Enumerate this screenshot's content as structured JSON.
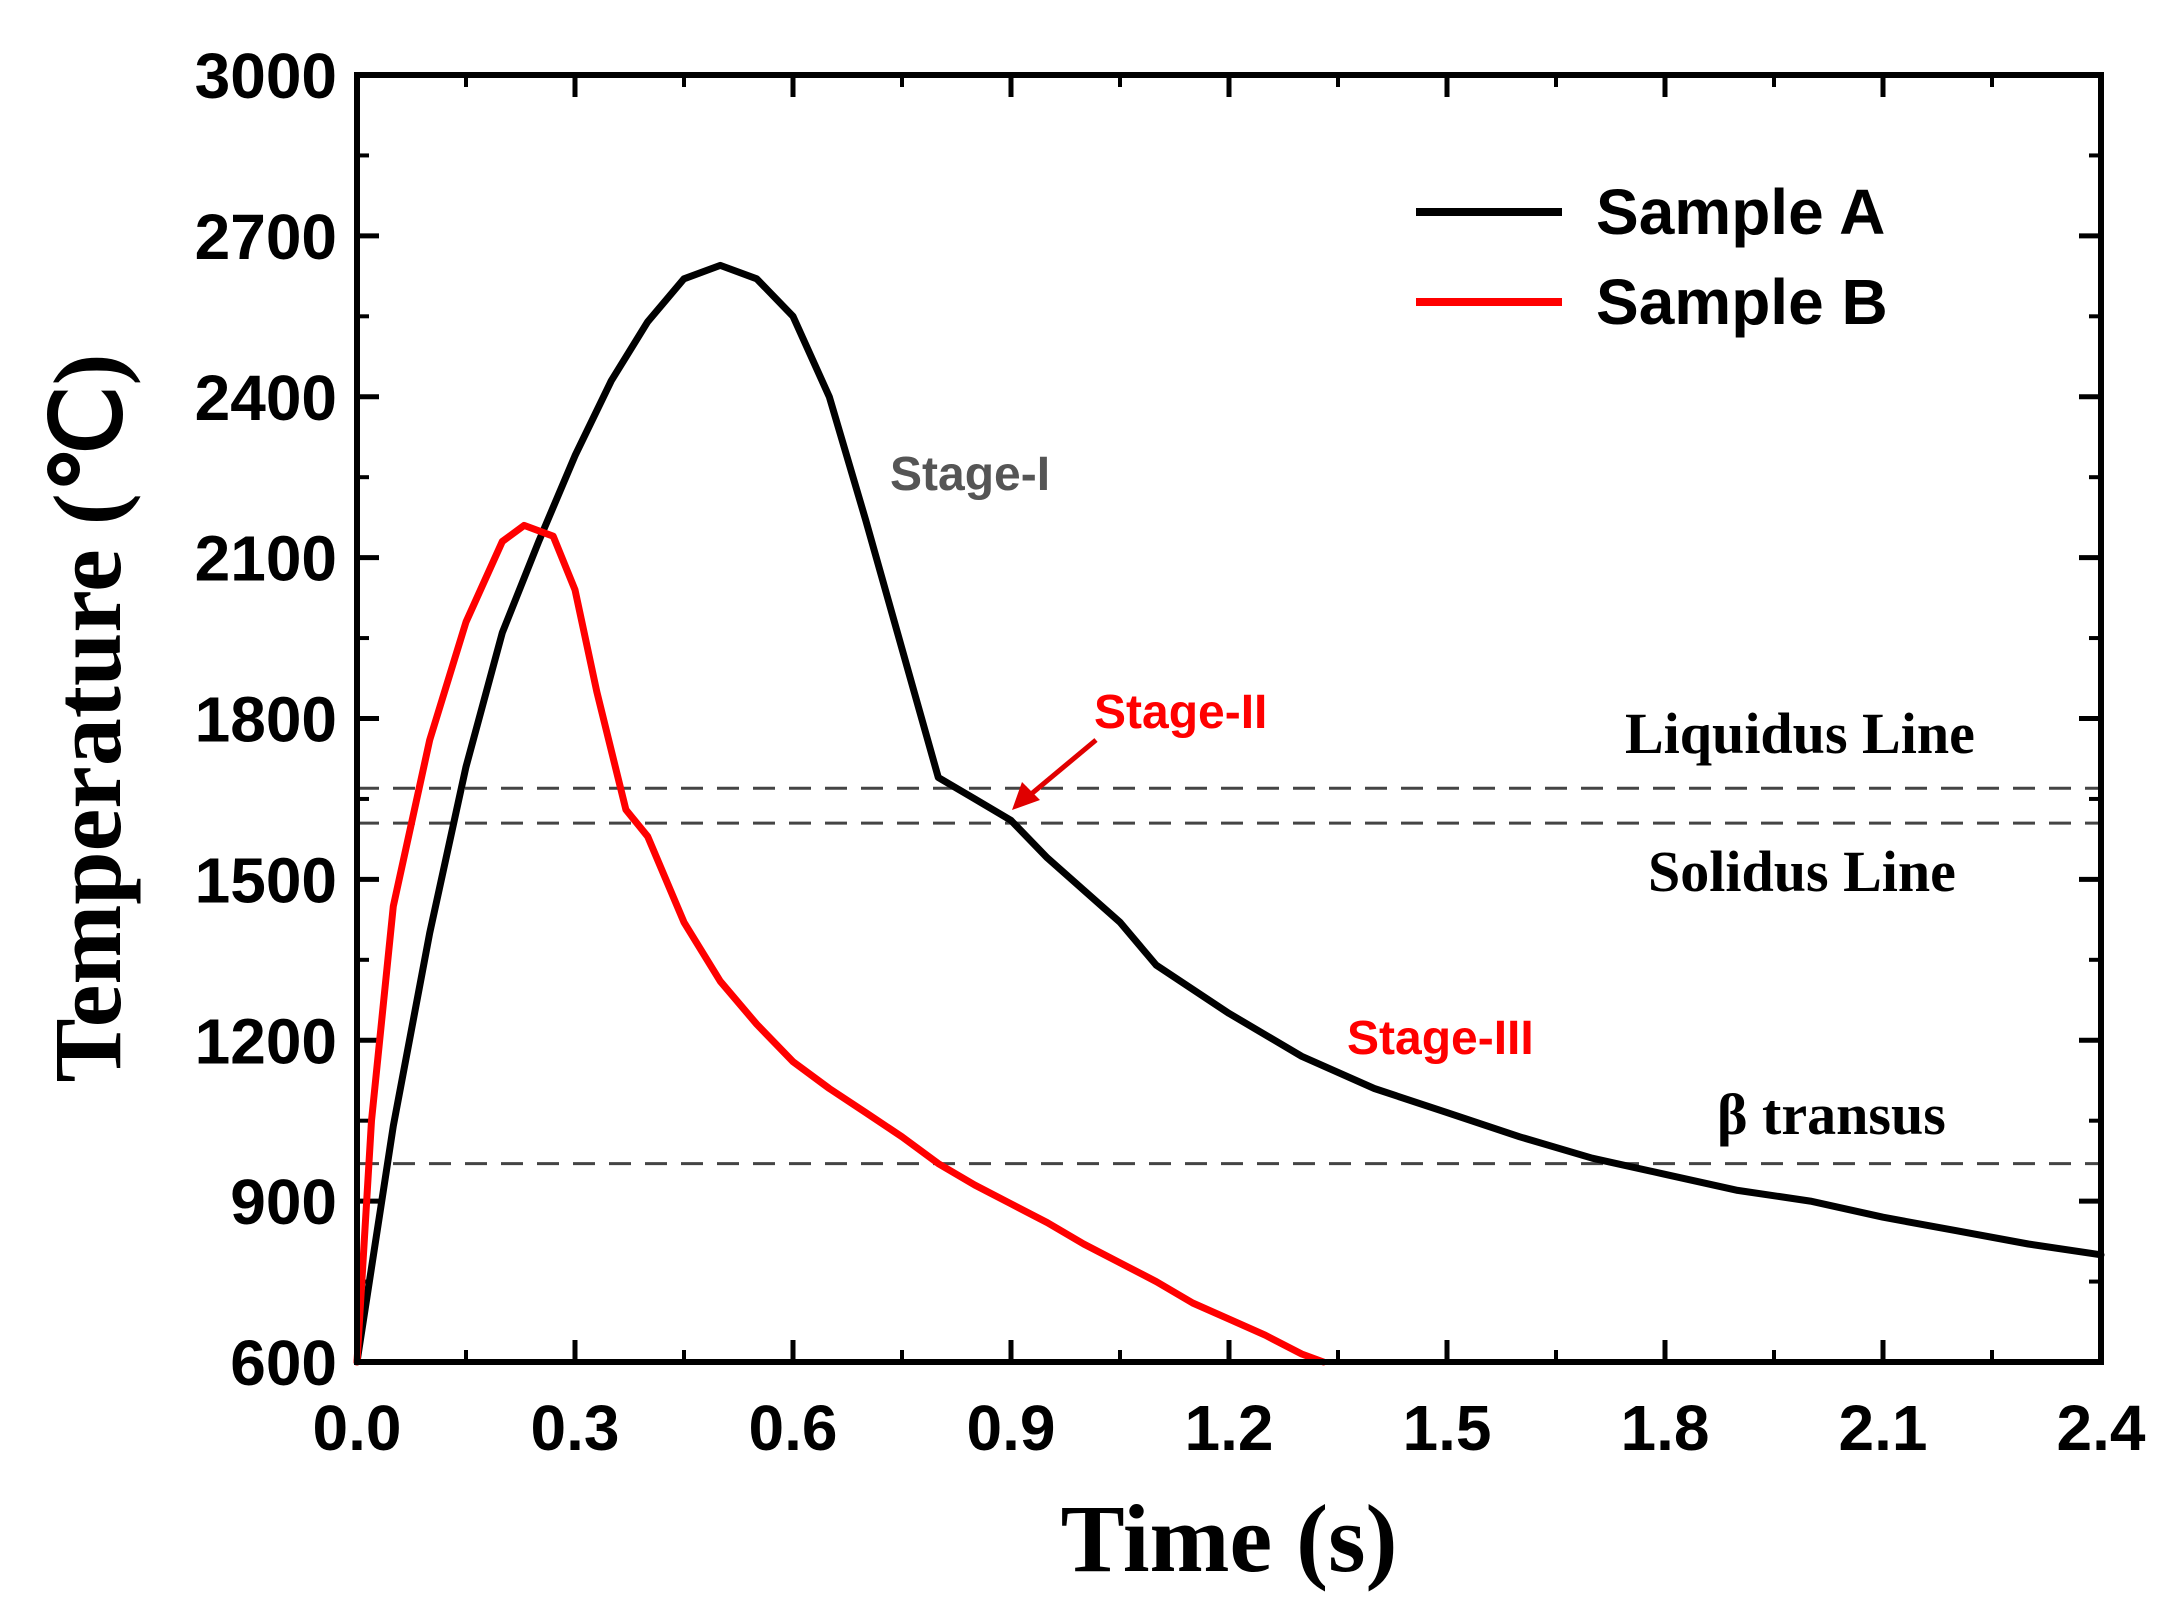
{
  "chart_data": {
    "type": "line",
    "xlabel": "Time (s)",
    "ylabel": "Temperature (℃)",
    "xlim": [
      0.0,
      2.4
    ],
    "ylim": [
      600,
      3000
    ],
    "xticks": [
      "0.0",
      "0.3",
      "0.6",
      "0.9",
      "1.2",
      "1.5",
      "1.8",
      "2.1",
      "2.4"
    ],
    "yticks": [
      "600",
      "900",
      "1200",
      "1500",
      "1800",
      "2100",
      "2400",
      "2700",
      "3000"
    ],
    "grid": false,
    "legend_position": "top-right",
    "series": [
      {
        "name": "Sample A",
        "color": "#000000",
        "x": [
          0.0,
          0.05,
          0.1,
          0.15,
          0.2,
          0.25,
          0.3,
          0.35,
          0.4,
          0.45,
          0.5,
          0.55,
          0.6,
          0.65,
          0.7,
          0.75,
          0.8,
          0.85,
          0.9,
          0.95,
          1.0,
          1.05,
          1.1,
          1.2,
          1.3,
          1.4,
          1.5,
          1.6,
          1.7,
          1.8,
          1.9,
          2.0,
          2.1,
          2.2,
          2.3,
          2.4
        ],
        "y": [
          600,
          1040,
          1400,
          1710,
          1960,
          2130,
          2290,
          2430,
          2540,
          2620,
          2645,
          2620,
          2550,
          2400,
          2170,
          1930,
          1690,
          1650,
          1610,
          1540,
          1480,
          1420,
          1340,
          1250,
          1170,
          1110,
          1065,
          1020,
          980,
          950,
          920,
          900,
          870,
          845,
          820,
          800
        ]
      },
      {
        "name": "Sample B",
        "color": "#ff0000",
        "x": [
          0.0,
          0.02,
          0.05,
          0.1,
          0.15,
          0.2,
          0.23,
          0.27,
          0.3,
          0.33,
          0.37,
          0.4,
          0.45,
          0.5,
          0.55,
          0.6,
          0.65,
          0.7,
          0.75,
          0.8,
          0.85,
          0.9,
          0.95,
          1.0,
          1.05,
          1.1,
          1.15,
          1.2,
          1.25,
          1.3,
          1.33
        ],
        "y": [
          600,
          1050,
          1450,
          1760,
          1980,
          2130,
          2160,
          2140,
          2040,
          1850,
          1630,
          1580,
          1420,
          1310,
          1230,
          1160,
          1110,
          1065,
          1020,
          970,
          930,
          895,
          860,
          820,
          785,
          750,
          710,
          680,
          650,
          615,
          600
        ]
      }
    ],
    "reference_lines": [
      {
        "label": "Liquidus Line",
        "y": 1670
      },
      {
        "label": "Solidus Line",
        "y": 1605
      },
      {
        "label": "β transus",
        "y": 970
      }
    ],
    "annotations": [
      {
        "text": "Stage-I",
        "color": "#555555"
      },
      {
        "text": "Stage-II",
        "color": "#ff0000"
      },
      {
        "text": "Stage-III",
        "color": "#ff0000"
      }
    ]
  }
}
